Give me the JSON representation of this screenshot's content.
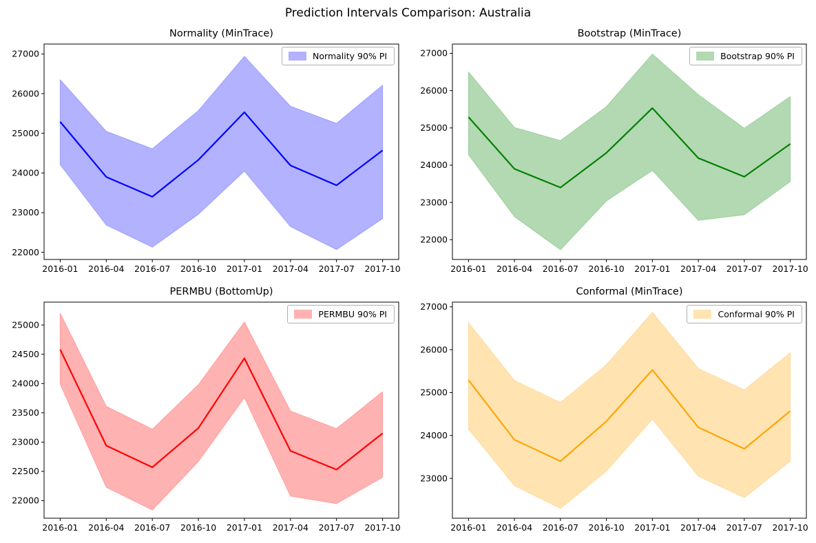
{
  "figure": {
    "suptitle": "Prediction Intervals Comparison: Australia",
    "background_color": "#ffffff",
    "text_color": "#000000"
  },
  "chart_data": [
    {
      "type": "area",
      "title": "Normality (MinTrace)",
      "legend_label": "Normality 90% PI",
      "legend_position": "upper right",
      "grid": false,
      "line_color": "#0000ff",
      "band_fill": "#b2b2ff",
      "band_edge": "#9e9eff",
      "categories": [
        "2016-01",
        "2016-04",
        "2016-07",
        "2016-10",
        "2017-01",
        "2017-04",
        "2017-07",
        "2017-10"
      ],
      "series": [
        {
          "name": "mean forecast",
          "values": [
            25290,
            23900,
            23400,
            24330,
            25530,
            24190,
            23690,
            24570
          ]
        },
        {
          "name": "upper 90% PI",
          "values": [
            26350,
            25050,
            24610,
            25570,
            26940,
            25680,
            25250,
            26210
          ]
        },
        {
          "name": "lower 90% PI",
          "values": [
            24210,
            22690,
            22130,
            22960,
            24050,
            22650,
            22070,
            22850
          ]
        }
      ],
      "ylim": [
        21820,
        27250
      ],
      "yticks": [
        22000,
        23000,
        24000,
        25000,
        26000,
        27000
      ]
    },
    {
      "type": "area",
      "title": "Bootstrap (MinTrace)",
      "legend_label": "Bootstrap 90% PI",
      "legend_position": "upper right",
      "grid": false,
      "line_color": "#008000",
      "band_fill": "#b2d9b2",
      "band_edge": "#9ecf9e",
      "categories": [
        "2016-01",
        "2016-04",
        "2016-07",
        "2016-10",
        "2017-01",
        "2017-04",
        "2017-07",
        "2017-10"
      ],
      "series": [
        {
          "name": "mean forecast",
          "values": [
            25290,
            23900,
            23400,
            24330,
            25530,
            24190,
            23690,
            24570
          ]
        },
        {
          "name": "upper 90% PI",
          "values": [
            26500,
            25010,
            24660,
            25570,
            26980,
            25890,
            24990,
            25840
          ]
        },
        {
          "name": "lower 90% PI",
          "values": [
            24280,
            22620,
            21730,
            23040,
            23860,
            22520,
            22670,
            23560
          ]
        }
      ],
      "ylim": [
        21470,
        27250
      ],
      "yticks": [
        22000,
        23000,
        24000,
        25000,
        26000,
        27000
      ]
    },
    {
      "type": "area",
      "title": "PERMBU (BottomUp)",
      "legend_label": "PERMBU 90% PI",
      "legend_position": "upper right",
      "grid": false,
      "line_color": "#ff0000",
      "band_fill": "#ffb2b2",
      "band_edge": "#ff9e9e",
      "categories": [
        "2016-01",
        "2016-04",
        "2016-07",
        "2016-10",
        "2017-01",
        "2017-04",
        "2017-07",
        "2017-10"
      ],
      "series": [
        {
          "name": "mean forecast",
          "values": [
            24580,
            22940,
            22570,
            23240,
            24430,
            22850,
            22530,
            23150
          ]
        },
        {
          "name": "upper 90% PI",
          "values": [
            25200,
            23610,
            23220,
            23980,
            25050,
            23530,
            23230,
            23860
          ]
        },
        {
          "name": "lower 90% PI",
          "values": [
            23990,
            22230,
            21840,
            22670,
            23760,
            22080,
            21950,
            22400
          ]
        }
      ],
      "ylim": [
        21700,
        25390
      ],
      "yticks": [
        22000,
        22500,
        23000,
        23500,
        24000,
        24500,
        25000
      ]
    },
    {
      "type": "area",
      "title": "Conformal (MinTrace)",
      "legend_label": "Conformal 90% PI",
      "legend_position": "upper right",
      "grid": false,
      "line_color": "#ffa500",
      "band_fill": "#ffe4b2",
      "band_edge": "#ffda9e",
      "categories": [
        "2016-01",
        "2016-04",
        "2016-07",
        "2016-10",
        "2017-01",
        "2017-04",
        "2017-07",
        "2017-10"
      ],
      "series": [
        {
          "name": "mean forecast",
          "values": [
            25290,
            23900,
            23400,
            24330,
            25530,
            24190,
            23690,
            24570
          ]
        },
        {
          "name": "upper 90% PI",
          "values": [
            26630,
            25280,
            24770,
            25650,
            26870,
            25560,
            25060,
            25930
          ]
        },
        {
          "name": "lower 90% PI",
          "values": [
            24150,
            22830,
            22300,
            23170,
            24380,
            23050,
            22550,
            23400
          ]
        }
      ],
      "ylim": [
        22070,
        27110
      ],
      "yticks": [
        23000,
        24000,
        25000,
        26000,
        27000
      ]
    }
  ]
}
